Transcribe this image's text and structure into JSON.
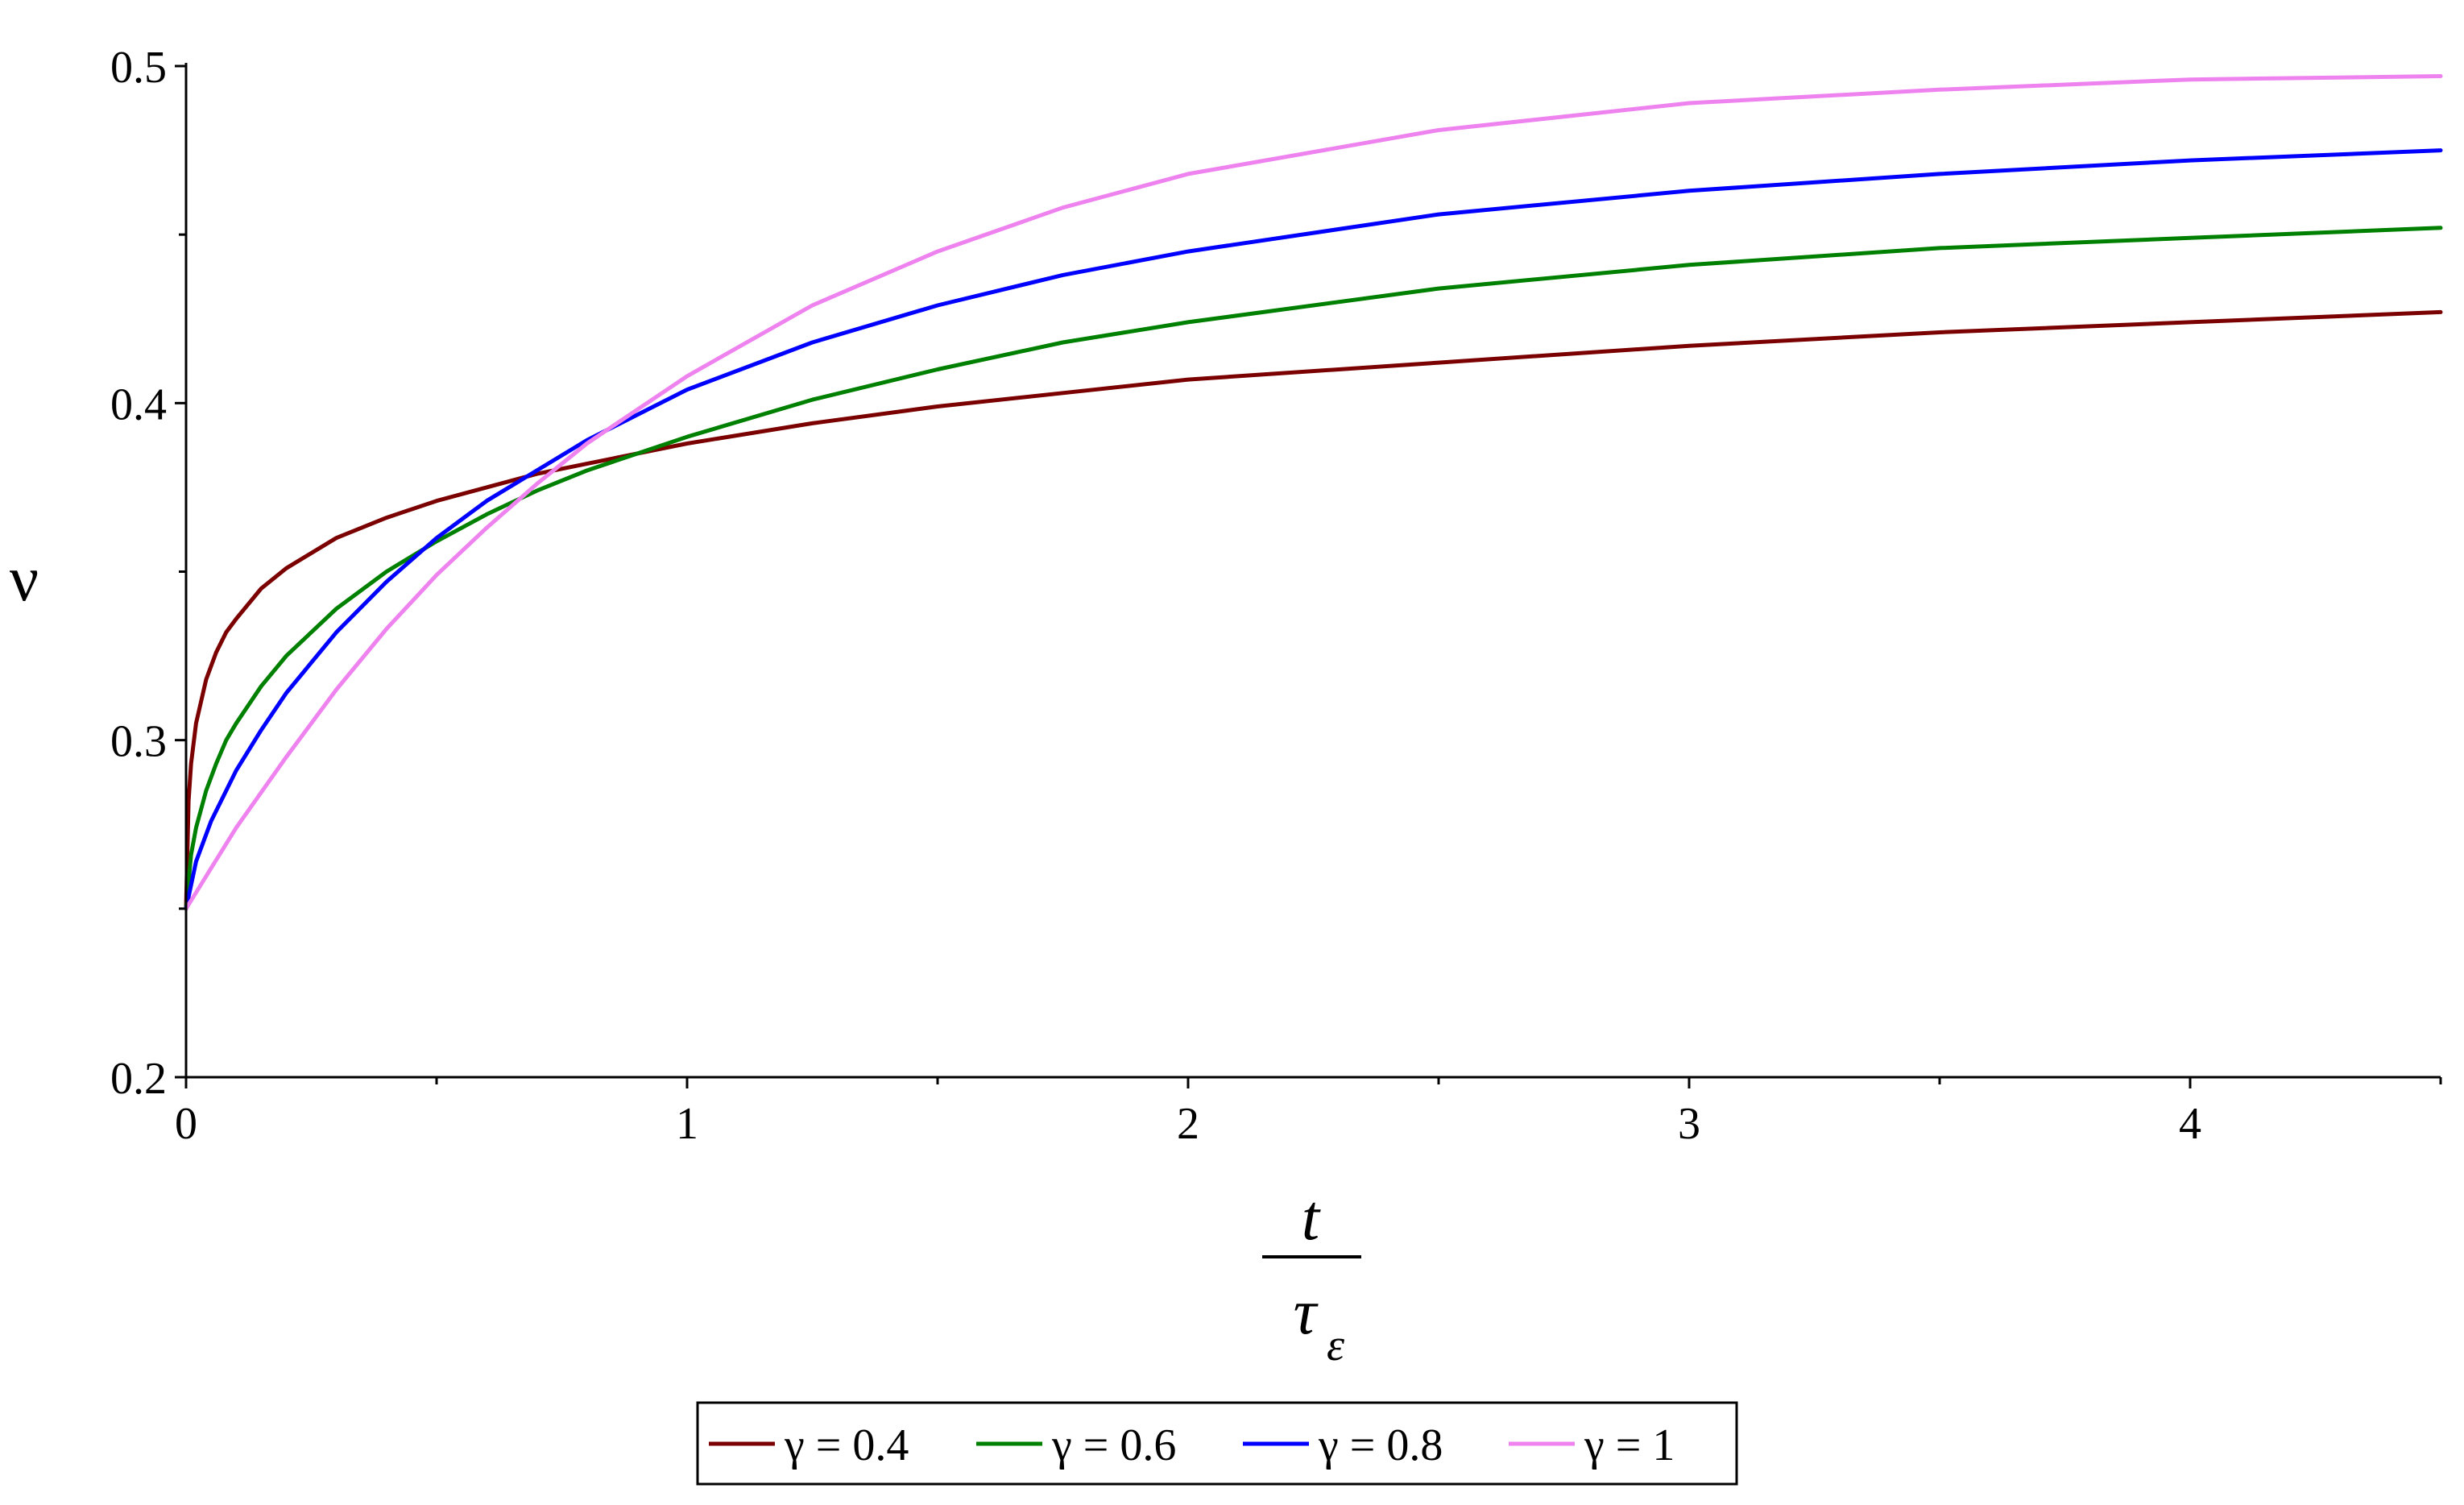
{
  "chart_data": {
    "type": "line",
    "xlabel": {
      "numerator": "t",
      "denominator": "τ",
      "denominator_subscript": "ε"
    },
    "ylabel": "ν",
    "xlim": [
      0,
      4.5
    ],
    "ylim": [
      0.2,
      0.5
    ],
    "x_ticks": [
      0,
      1,
      2,
      3,
      4
    ],
    "x_tick_labels": [
      "0",
      "1",
      "2",
      "3",
      "4"
    ],
    "x_minor_ticks": [
      0.5,
      1.5,
      2.5,
      3.5,
      4.5
    ],
    "y_ticks": [
      0.2,
      0.3,
      0.4,
      0.5
    ],
    "y_tick_labels": [
      "0.2",
      "0.3",
      "0.4",
      "0.5"
    ],
    "y_minor_ticks": [
      0.25,
      0.35,
      0.45
    ],
    "grid": false,
    "legend_position": "bottom-center",
    "series": [
      {
        "name": "γ = 0.4",
        "color": "#7b0000",
        "x": [
          0,
          0.005,
          0.01,
          0.02,
          0.04,
          0.06,
          0.08,
          0.1,
          0.15,
          0.2,
          0.3,
          0.4,
          0.5,
          0.6,
          0.7,
          0.8,
          1.0,
          1.25,
          1.5,
          1.75,
          2.0,
          2.5,
          3.0,
          3.5,
          4.0,
          4.5
        ],
        "y": [
          0.25,
          0.282,
          0.293,
          0.305,
          0.318,
          0.326,
          0.332,
          0.336,
          0.345,
          0.351,
          0.36,
          0.366,
          0.371,
          0.375,
          0.379,
          0.382,
          0.388,
          0.394,
          0.399,
          0.403,
          0.407,
          0.412,
          0.417,
          0.421,
          0.424,
          0.427
        ]
      },
      {
        "name": "γ = 0.6",
        "color": "#008000",
        "x": [
          0,
          0.01,
          0.02,
          0.04,
          0.06,
          0.08,
          0.1,
          0.15,
          0.2,
          0.3,
          0.4,
          0.5,
          0.6,
          0.7,
          0.8,
          1.0,
          1.25,
          1.5,
          1.75,
          2.0,
          2.5,
          3.0,
          3.5,
          4.0,
          4.5
        ],
        "y": [
          0.25,
          0.266,
          0.274,
          0.285,
          0.293,
          0.3,
          0.305,
          0.316,
          0.325,
          0.339,
          0.35,
          0.359,
          0.367,
          0.374,
          0.38,
          0.39,
          0.401,
          0.41,
          0.418,
          0.424,
          0.434,
          0.441,
          0.446,
          0.449,
          0.452
        ]
      },
      {
        "name": "γ = 0.8",
        "color": "#0000ff",
        "x": [
          0,
          0.02,
          0.05,
          0.1,
          0.15,
          0.2,
          0.3,
          0.4,
          0.5,
          0.6,
          0.7,
          0.8,
          1.0,
          1.25,
          1.5,
          1.75,
          2.0,
          2.5,
          3.0,
          3.5,
          4.0,
          4.5
        ],
        "y": [
          0.25,
          0.264,
          0.276,
          0.291,
          0.303,
          0.314,
          0.332,
          0.347,
          0.36,
          0.371,
          0.38,
          0.389,
          0.404,
          0.418,
          0.429,
          0.438,
          0.445,
          0.456,
          0.463,
          0.468,
          0.472,
          0.475
        ]
      },
      {
        "name": "γ = 1",
        "color": "#ee82ee",
        "x": [
          0,
          0.05,
          0.1,
          0.2,
          0.3,
          0.4,
          0.5,
          0.6,
          0.7,
          0.8,
          1.0,
          1.25,
          1.5,
          1.75,
          2.0,
          2.5,
          3.0,
          3.5,
          4.0,
          4.5
        ],
        "y": [
          0.25,
          0.262,
          0.274,
          0.295,
          0.315,
          0.333,
          0.349,
          0.363,
          0.376,
          0.388,
          0.408,
          0.429,
          0.445,
          0.458,
          0.468,
          0.481,
          0.489,
          0.493,
          0.496,
          0.497
        ]
      }
    ]
  }
}
